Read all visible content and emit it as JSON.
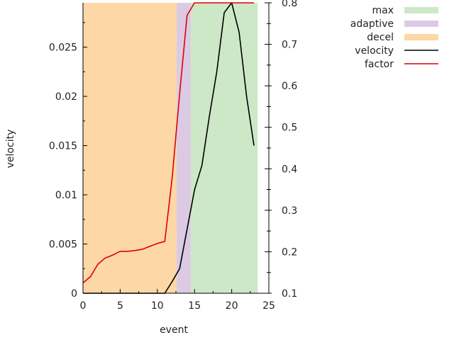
{
  "chart_data": {
    "type": "area",
    "xlabel": "event",
    "ylabel": "velocity",
    "xlim": [
      0,
      25
    ],
    "ylim_left": [
      0,
      0.0295
    ],
    "ylim_right": [
      0.1,
      0.8
    ],
    "x_ticks": [
      0,
      5,
      10,
      15,
      20,
      25
    ],
    "x_tick_labels": [
      "0",
      "5",
      "10",
      "15",
      "20",
      "25"
    ],
    "y_left_ticks": [
      0,
      0.005,
      0.01,
      0.015,
      0.02,
      0.025
    ],
    "y_left_tick_labels": [
      "0",
      "0.005",
      "0.01",
      "0.015",
      "0.02",
      "0.025"
    ],
    "y_right_ticks": [
      0.1,
      0.2,
      0.3,
      0.4,
      0.5,
      0.6,
      0.7,
      0.8
    ],
    "y_right_tick_labels": [
      "0.1",
      "0.2",
      "0.3",
      "0.4",
      "0.5",
      "0.6",
      "0.7",
      "0.8"
    ],
    "grid": false,
    "legend_position": "top-right",
    "regions": [
      {
        "name": "decel",
        "x_start": 0,
        "x_end": 12.6,
        "color": "#fdd7a6"
      },
      {
        "name": "adaptive",
        "x_start": 12.6,
        "x_end": 14.5,
        "color": "#dccae4"
      },
      {
        "name": "max",
        "x_start": 14.5,
        "x_end": 23.5,
        "color": "#cde8c7"
      }
    ],
    "series": [
      {
        "name": "velocity",
        "axis": "left",
        "color": "#000000",
        "x": [
          0,
          1,
          2,
          3,
          4,
          5,
          6,
          7,
          8,
          9,
          10,
          11,
          12,
          13,
          14,
          15,
          16,
          17,
          18,
          19,
          20,
          21,
          22,
          23
        ],
        "y": [
          0,
          0,
          0,
          0,
          0,
          0,
          0,
          0,
          0,
          0,
          0,
          0,
          0.0012,
          0.0025,
          0.0065,
          0.0105,
          0.013,
          0.018,
          0.0225,
          0.0285,
          0.0295,
          0.0265,
          0.02,
          0.015
        ]
      },
      {
        "name": "factor",
        "axis": "right",
        "color": "#e00000",
        "x": [
          0,
          1,
          2,
          3,
          4,
          5,
          6,
          7,
          8,
          9,
          10,
          11,
          12,
          13,
          14,
          15,
          16,
          17,
          18,
          19,
          20,
          21,
          22,
          23
        ],
        "y": [
          0.125,
          0.14,
          0.17,
          0.185,
          0.192,
          0.201,
          0.201,
          0.203,
          0.206,
          0.213,
          0.22,
          0.225,
          0.38,
          0.58,
          0.77,
          0.8,
          0.8,
          0.8,
          0.8,
          0.8,
          0.8,
          0.8,
          0.8,
          0.8
        ]
      }
    ],
    "legend": [
      {
        "label": "max",
        "kind": "box",
        "color": "#cde8c7"
      },
      {
        "label": "adaptive",
        "kind": "box",
        "color": "#dccae4"
      },
      {
        "label": "decel",
        "kind": "box",
        "color": "#fdd7a6"
      },
      {
        "label": "velocity",
        "kind": "line",
        "color": "#000000"
      },
      {
        "label": "factor",
        "kind": "line",
        "color": "#e00000"
      }
    ]
  }
}
